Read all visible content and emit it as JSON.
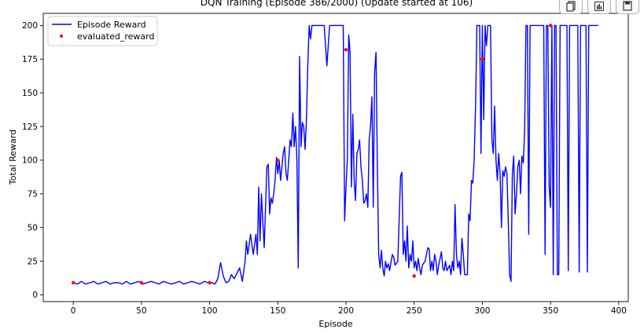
{
  "chart_data": {
    "type": "line",
    "title": "DQN Training (Episode 386/2000) (Update started at 106)",
    "xlabel": "Episode",
    "ylabel": "Total Reward",
    "xlim": [
      -22,
      407
    ],
    "ylim": [
      -5,
      209
    ],
    "xticks": [
      0,
      50,
      100,
      150,
      200,
      250,
      300,
      350,
      400
    ],
    "yticks": [
      0,
      25,
      50,
      75,
      100,
      125,
      150,
      175,
      200
    ],
    "grid": false,
    "legend_position": "top-left",
    "series": [
      {
        "name": "Episode Reward",
        "kind": "line",
        "color": "#0000ff",
        "points": [
          [
            0,
            9
          ],
          [
            3,
            8
          ],
          [
            6,
            10
          ],
          [
            9,
            8
          ],
          [
            12,
            9
          ],
          [
            15,
            10
          ],
          [
            18,
            8
          ],
          [
            21,
            9
          ],
          [
            24,
            10
          ],
          [
            27,
            8
          ],
          [
            30,
            9
          ],
          [
            33,
            9
          ],
          [
            36,
            8
          ],
          [
            39,
            10
          ],
          [
            42,
            8
          ],
          [
            45,
            9
          ],
          [
            48,
            10
          ],
          [
            51,
            8
          ],
          [
            54,
            9
          ],
          [
            57,
            10
          ],
          [
            60,
            9
          ],
          [
            63,
            8
          ],
          [
            66,
            10
          ],
          [
            69,
            9
          ],
          [
            72,
            8
          ],
          [
            75,
            9
          ],
          [
            78,
            10
          ],
          [
            81,
            8
          ],
          [
            84,
            9
          ],
          [
            87,
            10
          ],
          [
            90,
            9
          ],
          [
            93,
            8
          ],
          [
            96,
            10
          ],
          [
            99,
            9
          ],
          [
            102,
            9
          ],
          [
            104,
            8
          ],
          [
            106,
            12
          ],
          [
            108,
            24
          ],
          [
            110,
            14
          ],
          [
            112,
            9
          ],
          [
            114,
            10
          ],
          [
            116,
            15
          ],
          [
            118,
            12
          ],
          [
            120,
            16
          ],
          [
            122,
            20
          ],
          [
            124,
            10
          ],
          [
            126,
            25
          ],
          [
            127,
            40
          ],
          [
            128,
            30
          ],
          [
            130,
            45
          ],
          [
            132,
            30
          ],
          [
            134,
            45
          ],
          [
            135,
            30
          ],
          [
            136,
            80
          ],
          [
            137,
            40
          ],
          [
            138,
            75
          ],
          [
            139,
            55
          ],
          [
            140,
            35
          ],
          [
            141,
            65
          ],
          [
            142,
            95
          ],
          [
            143,
            97
          ],
          [
            144,
            60
          ],
          [
            145,
            72
          ],
          [
            146,
            68
          ],
          [
            147,
            75
          ],
          [
            148,
            85
          ],
          [
            149,
            102
          ],
          [
            150,
            90
          ],
          [
            151,
            100
          ],
          [
            152,
            85
          ],
          [
            153,
            95
          ],
          [
            154,
            105
          ],
          [
            155,
            110
          ],
          [
            156,
            90
          ],
          [
            157,
            85
          ],
          [
            158,
            100
          ],
          [
            159,
            115
          ],
          [
            160,
            110
          ],
          [
            161,
            135
          ],
          [
            162,
            110
          ],
          [
            163,
            125
          ],
          [
            164,
            100
          ],
          [
            165,
            20
          ],
          [
            166,
            177
          ],
          [
            167,
            110
          ],
          [
            168,
            128
          ],
          [
            169,
            125
          ],
          [
            170,
            108
          ],
          [
            171,
            130
          ],
          [
            172,
            170
          ],
          [
            173,
            200
          ],
          [
            174,
            190
          ],
          [
            175,
            200
          ],
          [
            180,
            200
          ],
          [
            184,
            200
          ],
          [
            186,
            170
          ],
          [
            188,
            200
          ],
          [
            195,
            200
          ],
          [
            198,
            200
          ],
          [
            199,
            55
          ],
          [
            200,
            80
          ],
          [
            201,
            100
          ],
          [
            202,
            193
          ],
          [
            203,
            180
          ],
          [
            204,
            80
          ],
          [
            205,
            134
          ],
          [
            206,
            85
          ],
          [
            207,
            70
          ],
          [
            208,
            105
          ],
          [
            209,
            108
          ],
          [
            210,
            115
          ],
          [
            211,
            95
          ],
          [
            212,
            85
          ],
          [
            213,
            68
          ],
          [
            214,
            70
          ],
          [
            215,
            75
          ],
          [
            216,
            65
          ],
          [
            217,
            115
          ],
          [
            218,
            125
          ],
          [
            219,
            147
          ],
          [
            220,
            65
          ],
          [
            221,
            165
          ],
          [
            222,
            180
          ],
          [
            223,
            95
          ],
          [
            224,
            30
          ],
          [
            225,
            20
          ],
          [
            226,
            33
          ],
          [
            227,
            20
          ],
          [
            228,
            14
          ],
          [
            229,
            25
          ],
          [
            230,
            20
          ],
          [
            231,
            23
          ],
          [
            232,
            18
          ],
          [
            233,
            24
          ],
          [
            234,
            30
          ],
          [
            235,
            28
          ],
          [
            236,
            22
          ],
          [
            238,
            25
          ],
          [
            240,
            88
          ],
          [
            241,
            91
          ],
          [
            242,
            30
          ],
          [
            243,
            40
          ],
          [
            244,
            25
          ],
          [
            245,
            51
          ],
          [
            246,
            20
          ],
          [
            247,
            30
          ],
          [
            248,
            25
          ],
          [
            249,
            40
          ],
          [
            250,
            20
          ],
          [
            251,
            25
          ],
          [
            252,
            18
          ],
          [
            253,
            27
          ],
          [
            254,
            20
          ],
          [
            255,
            15
          ],
          [
            256,
            22
          ],
          [
            258,
            25
          ],
          [
            260,
            35
          ],
          [
            261,
            34
          ],
          [
            262,
            18
          ],
          [
            263,
            25
          ],
          [
            264,
            18
          ],
          [
            265,
            30
          ],
          [
            266,
            25
          ],
          [
            267,
            15
          ],
          [
            268,
            22
          ],
          [
            270,
            32
          ],
          [
            271,
            20
          ],
          [
            272,
            18
          ],
          [
            273,
            25
          ],
          [
            274,
            18
          ],
          [
            276,
            22
          ],
          [
            277,
            15
          ],
          [
            278,
            25
          ],
          [
            279,
            18
          ],
          [
            280,
            67
          ],
          [
            281,
            30
          ],
          [
            282,
            20
          ],
          [
            283,
            25
          ],
          [
            284,
            15
          ],
          [
            285,
            42
          ],
          [
            286,
            30
          ],
          [
            287,
            15
          ],
          [
            289,
            15
          ],
          [
            290,
            60
          ],
          [
            291,
            55
          ],
          [
            292,
            85
          ],
          [
            293,
            83
          ],
          [
            294,
            100
          ],
          [
            295,
            140
          ],
          [
            296,
            200
          ],
          [
            298,
            200
          ],
          [
            299,
            105
          ],
          [
            300,
            200
          ],
          [
            301,
            130
          ],
          [
            302,
            200
          ],
          [
            303,
            185
          ],
          [
            304,
            200
          ],
          [
            306,
            200
          ],
          [
            307,
            115
          ],
          [
            308,
            105
          ],
          [
            309,
            140
          ],
          [
            310,
            100
          ],
          [
            311,
            85
          ],
          [
            312,
            105
          ],
          [
            313,
            90
          ],
          [
            314,
            50
          ],
          [
            315,
            92
          ],
          [
            316,
            88
          ],
          [
            317,
            95
          ],
          [
            318,
            90
          ],
          [
            319,
            55
          ],
          [
            320,
            15
          ],
          [
            321,
            10
          ],
          [
            322,
            90
          ],
          [
            323,
            103
          ],
          [
            324,
            60
          ],
          [
            325,
            75
          ],
          [
            326,
            95
          ],
          [
            327,
            100
          ],
          [
            328,
            75
          ],
          [
            329,
            103
          ],
          [
            330,
            98
          ],
          [
            331,
            122
          ],
          [
            332,
            200
          ],
          [
            333,
            200
          ],
          [
            334,
            45
          ],
          [
            335,
            200
          ],
          [
            340,
            200
          ],
          [
            345,
            200
          ],
          [
            346,
            30
          ],
          [
            347,
            200
          ],
          [
            348,
            200
          ],
          [
            349,
            80
          ],
          [
            350,
            65
          ],
          [
            351,
            200
          ],
          [
            352,
            15
          ],
          [
            353,
            200
          ],
          [
            354,
            200
          ],
          [
            355,
            15
          ],
          [
            356,
            15
          ],
          [
            357,
            200
          ],
          [
            362,
            200
          ],
          [
            363,
            18
          ],
          [
            364,
            200
          ],
          [
            370,
            200
          ],
          [
            371,
            17
          ],
          [
            372,
            200
          ],
          [
            376,
            200
          ],
          [
            377,
            17
          ],
          [
            378,
            200
          ],
          [
            385,
            200
          ]
        ]
      },
      {
        "name": "evaluated_reward",
        "kind": "scatter",
        "color": "#ff0000",
        "points": [
          [
            0,
            9
          ],
          [
            50,
            9
          ],
          [
            100,
            9
          ],
          [
            150,
            100
          ],
          [
            200,
            182
          ],
          [
            250,
            14
          ],
          [
            300,
            175
          ],
          [
            350,
            200
          ]
        ]
      }
    ]
  },
  "toolbar": {
    "buttons": [
      {
        "icon": "copy-icon"
      },
      {
        "icon": "bar-chart-icon"
      },
      {
        "icon": "save-icon"
      }
    ]
  }
}
